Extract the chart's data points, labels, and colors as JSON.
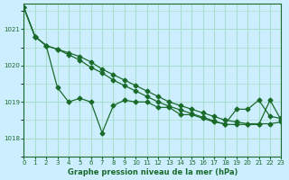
{
  "title": "Graphe pression niveau de la mer (hPa)",
  "bg_color": "#cceeff",
  "grid_color": "#aaddcc",
  "line_color": "#1a6b2a",
  "xlim": [
    0,
    23
  ],
  "ylim": [
    1017.5,
    1021.7
  ],
  "yticks": [
    1018,
    1019,
    1020,
    1021
  ],
  "xticks": [
    0,
    1,
    2,
    3,
    4,
    5,
    6,
    7,
    8,
    9,
    10,
    11,
    12,
    13,
    14,
    15,
    16,
    17,
    18,
    19,
    20,
    21,
    22,
    23
  ],
  "series": [
    [
      1021.6,
      1020.8,
      1020.55,
      1019.4,
      1019.0,
      1019.1,
      1019.0,
      1018.15,
      1018.9,
      1019.05,
      1019.0,
      1019.0,
      1018.85,
      1018.85,
      1018.65,
      1018.65,
      1018.55,
      1018.45,
      1018.4,
      1018.8,
      1018.8,
      1019.05,
      1018.6,
      1018.55
    ],
    [
      1021.6,
      1020.8,
      1020.55,
      1020.45,
      1020.35,
      1020.25,
      1020.1,
      1019.9,
      1019.75,
      1019.6,
      1019.45,
      1019.3,
      1019.15,
      1019.0,
      1018.9,
      1018.8,
      1018.7,
      1018.6,
      1018.5,
      1018.45,
      1018.4,
      1018.4,
      1018.4,
      1018.45
    ],
    [
      1021.6,
      1020.8,
      1020.55,
      1020.45,
      1020.3,
      1020.15,
      1019.95,
      1019.8,
      1019.6,
      1019.45,
      1019.3,
      1019.15,
      1019.0,
      1018.88,
      1018.78,
      1018.68,
      1018.58,
      1018.48,
      1018.38,
      1018.38,
      1018.38,
      1018.38,
      1019.05,
      1018.5
    ]
  ]
}
